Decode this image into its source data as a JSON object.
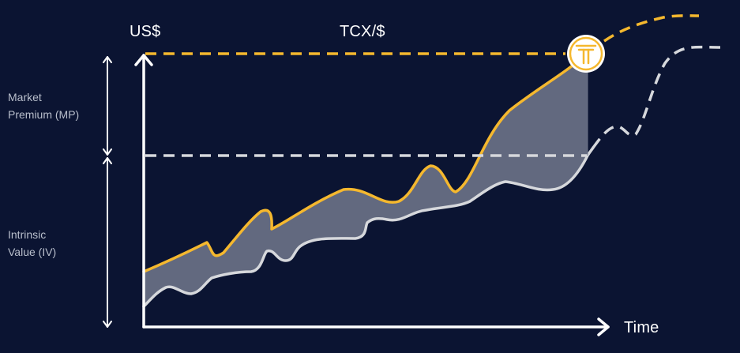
{
  "labels": {
    "y_axis_unit": "US$",
    "token_rate": "TCX/$",
    "x_axis": "Time",
    "market_premium": [
      "Market",
      "Premium (MP)"
    ],
    "intrinsic_value": [
      "Intrinsic",
      "Value (IV)"
    ]
  },
  "logo": {
    "name": "tcx-token-logo",
    "text": "T"
  },
  "colors": {
    "background": "#0b1432",
    "market_price_line": "#f5b82e",
    "intrinsic_value_line": "#d6d8dc",
    "premium_fill": "#6a7186",
    "axis": "#ffffff",
    "side_text": "#b9bfcc"
  },
  "legend": "none"
}
